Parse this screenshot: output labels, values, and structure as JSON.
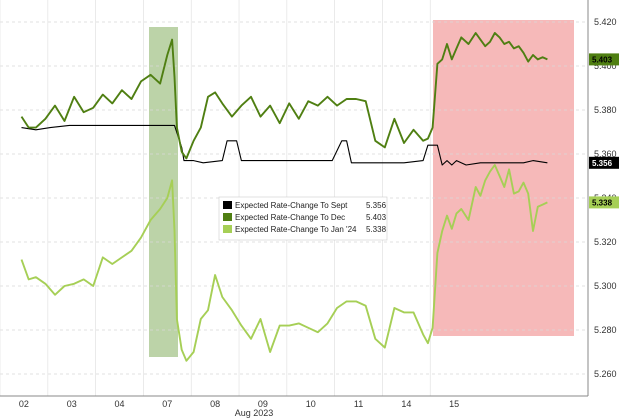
{
  "chart_data": {
    "type": "line",
    "title": "",
    "xlabel": "Aug 2023",
    "ylabel": "",
    "ylim": [
      5.25,
      5.43
    ],
    "grid": "on",
    "x_tick_labels": [
      "02",
      "03",
      "04",
      "07",
      "08",
      "09",
      "10",
      "11",
      "14",
      "15"
    ],
    "y_tick_labels": [
      "5.260",
      "5.280",
      "5.300",
      "5.320",
      "5.340",
      "5.360",
      "5.380",
      "5.400",
      "5.420"
    ],
    "shaded_regions": [
      {
        "from": "04",
        "to": "04-end",
        "color": "#6b9d3f"
      },
      {
        "from": "11",
        "to": "15",
        "color": "#f08b8b"
      }
    ],
    "legend": {
      "placement": "center",
      "entries": [
        {
          "label": "Expected Rate-Change To Sept",
          "value": "5.356",
          "color": "#000000"
        },
        {
          "label": "Expected Rate-Change To Dec",
          "value": "5.403",
          "color": "#4f7f12"
        },
        {
          "label": "Expected Rate-Change To Jan '24",
          "value": "5.338",
          "color": "#a6cf56"
        }
      ]
    },
    "end_tags": [
      {
        "text": "5.403",
        "color": "#4f7f12",
        "text_color": "#000000"
      },
      {
        "text": "5.356",
        "color": "#000000",
        "text_color": "#ffffff"
      },
      {
        "text": "5.338",
        "color": "#a6cf56",
        "text_color": "#000000"
      }
    ],
    "series": [
      {
        "name": "Expected Rate-Change To Sept",
        "color": "#000000",
        "x": [
          0,
          0.3,
          0.6,
          1,
          1.5,
          2,
          2.5,
          2.9,
          3.2,
          3.35,
          3.4,
          3.5,
          3.6,
          3.8,
          4.2,
          4.3,
          4.5,
          4.6,
          4.9,
          5.2,
          6,
          6.5,
          6.7,
          6.8,
          6.9,
          7,
          7.5,
          8,
          8.4,
          8.5,
          8.7,
          8.8,
          8.9,
          9,
          9.1,
          9.3,
          9.6,
          9.8,
          10,
          10.5,
          10.7,
          11
        ],
        "y": [
          5.372,
          5.371,
          5.372,
          5.373,
          5.373,
          5.373,
          5.373,
          5.373,
          5.373,
          5.363,
          5.357,
          5.357,
          5.357,
          5.356,
          5.357,
          5.366,
          5.366,
          5.357,
          5.357,
          5.357,
          5.357,
          5.357,
          5.366,
          5.366,
          5.356,
          5.356,
          5.356,
          5.356,
          5.357,
          5.364,
          5.364,
          5.355,
          5.357,
          5.355,
          5.357,
          5.355,
          5.356,
          5.356,
          5.356,
          5.356,
          5.357,
          5.356
        ]
      },
      {
        "name": "Expected Rate-Change To Dec",
        "color": "#4f7f12",
        "x": [
          0,
          0.15,
          0.3,
          0.5,
          0.7,
          0.9,
          1.1,
          1.3,
          1.5,
          1.7,
          1.9,
          2.1,
          2.3,
          2.5,
          2.7,
          2.9,
          3.05,
          3.15,
          3.2,
          3.25,
          3.35,
          3.45,
          3.6,
          3.75,
          3.9,
          4.05,
          4.2,
          4.4,
          4.6,
          4.8,
          5,
          5.2,
          5.4,
          5.6,
          5.8,
          6,
          6.2,
          6.4,
          6.6,
          6.8,
          7,
          7.2,
          7.4,
          7.6,
          7.8,
          8,
          8.2,
          8.4,
          8.5,
          8.6,
          8.7,
          8.8,
          8.9,
          9,
          9.1,
          9.2,
          9.35,
          9.5,
          9.6,
          9.7,
          9.8,
          9.9,
          10,
          10.1,
          10.2,
          10.3,
          10.4,
          10.5,
          10.6,
          10.7,
          10.8,
          10.9,
          11
        ],
        "y": [
          5.377,
          5.372,
          5.372,
          5.376,
          5.382,
          5.375,
          5.386,
          5.379,
          5.381,
          5.387,
          5.383,
          5.389,
          5.385,
          5.393,
          5.396,
          5.392,
          5.405,
          5.412,
          5.395,
          5.372,
          5.361,
          5.358,
          5.366,
          5.372,
          5.386,
          5.388,
          5.383,
          5.377,
          5.382,
          5.386,
          5.377,
          5.382,
          5.374,
          5.383,
          5.376,
          5.384,
          5.382,
          5.386,
          5.382,
          5.385,
          5.385,
          5.384,
          5.366,
          5.363,
          5.376,
          5.365,
          5.371,
          5.366,
          5.367,
          5.372,
          5.401,
          5.403,
          5.41,
          5.403,
          5.408,
          5.413,
          5.41,
          5.415,
          5.412,
          5.409,
          5.411,
          5.415,
          5.413,
          5.41,
          5.411,
          5.408,
          5.409,
          5.406,
          5.402,
          5.405,
          5.403,
          5.404,
          5.403
        ]
      },
      {
        "name": "Expected Rate-Change To Jan '24",
        "color": "#a6cf56",
        "x": [
          0,
          0.15,
          0.3,
          0.5,
          0.7,
          0.9,
          1.1,
          1.3,
          1.5,
          1.7,
          1.9,
          2.1,
          2.3,
          2.5,
          2.7,
          2.9,
          3.05,
          3.15,
          3.2,
          3.25,
          3.35,
          3.45,
          3.6,
          3.75,
          3.9,
          4.05,
          4.2,
          4.4,
          4.6,
          4.8,
          5,
          5.2,
          5.4,
          5.6,
          5.8,
          6,
          6.2,
          6.4,
          6.6,
          6.8,
          7,
          7.2,
          7.4,
          7.6,
          7.8,
          8,
          8.2,
          8.4,
          8.5,
          8.6,
          8.7,
          8.8,
          8.9,
          9,
          9.1,
          9.2,
          9.35,
          9.5,
          9.6,
          9.7,
          9.8,
          9.9,
          10,
          10.1,
          10.2,
          10.3,
          10.4,
          10.5,
          10.6,
          10.7,
          10.8,
          10.9,
          11
        ],
        "y": [
          5.312,
          5.303,
          5.304,
          5.301,
          5.296,
          5.3,
          5.301,
          5.303,
          5.3,
          5.313,
          5.31,
          5.313,
          5.316,
          5.322,
          5.33,
          5.335,
          5.34,
          5.348,
          5.325,
          5.285,
          5.271,
          5.266,
          5.27,
          5.285,
          5.289,
          5.305,
          5.295,
          5.289,
          5.282,
          5.276,
          5.285,
          5.27,
          5.282,
          5.282,
          5.283,
          5.281,
          5.279,
          5.283,
          5.29,
          5.293,
          5.293,
          5.291,
          5.276,
          5.272,
          5.29,
          5.288,
          5.288,
          5.278,
          5.274,
          5.281,
          5.315,
          5.325,
          5.332,
          5.326,
          5.333,
          5.335,
          5.33,
          5.345,
          5.341,
          5.348,
          5.352,
          5.355,
          5.35,
          5.345,
          5.353,
          5.342,
          5.343,
          5.347,
          5.342,
          5.325,
          5.336,
          5.337,
          5.338
        ]
      }
    ]
  }
}
